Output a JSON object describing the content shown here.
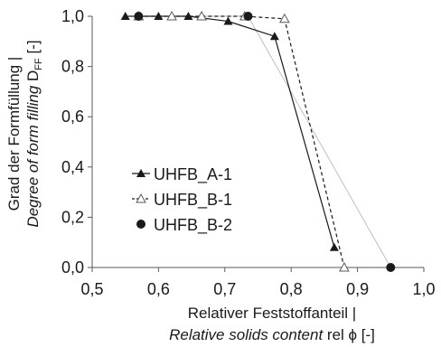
{
  "chart_data": {
    "type": "line",
    "xlabel_line1": "Relativer Feststoffanteil |",
    "xlabel_line2": "Relative solids content rel ϕ [-]",
    "ylabel_line1": "Grad der Formfüllung |",
    "ylabel_line2": "Degree of form filling D_FF [-]",
    "xlim": [
      0.5,
      1.0
    ],
    "ylim": [
      0.0,
      1.0
    ],
    "xticks": [
      0.5,
      0.6,
      0.7,
      0.8,
      0.9,
      1.0
    ],
    "yticks": [
      0.0,
      0.2,
      0.4,
      0.6,
      0.8,
      1.0
    ],
    "xtick_labels": [
      "0,5",
      "0,6",
      "0,7",
      "0,8",
      "0,9",
      "1,0"
    ],
    "ytick_labels": [
      "0,0",
      "0,2",
      "0,4",
      "0,6",
      "0,8",
      "1,0"
    ],
    "grid": false,
    "legend_position": "center-left",
    "series": [
      {
        "name": "UHFB_A-1",
        "marker": "filled-triangle",
        "line_style": "solid",
        "color": "#1a1a1a",
        "x": [
          0.55,
          0.6,
          0.645,
          0.705,
          0.775,
          0.865
        ],
        "y": [
          1.0,
          1.0,
          1.0,
          0.98,
          0.92,
          0.08
        ]
      },
      {
        "name": "UHFB_B-1",
        "marker": "open-triangle",
        "line_style": "dashed",
        "color": "#1a1a1a",
        "x": [
          0.57,
          0.62,
          0.665,
          0.73,
          0.79,
          0.88
        ],
        "y": [
          1.0,
          1.0,
          1.0,
          1.0,
          0.99,
          0.0
        ]
      },
      {
        "name": "UHFB_B-2",
        "marker": "filled-circle",
        "line_style": "solid-light",
        "color": "#bfbfbf",
        "x": [
          0.57,
          0.735,
          0.95
        ],
        "y": [
          1.0,
          1.0,
          0.0
        ]
      }
    ]
  }
}
